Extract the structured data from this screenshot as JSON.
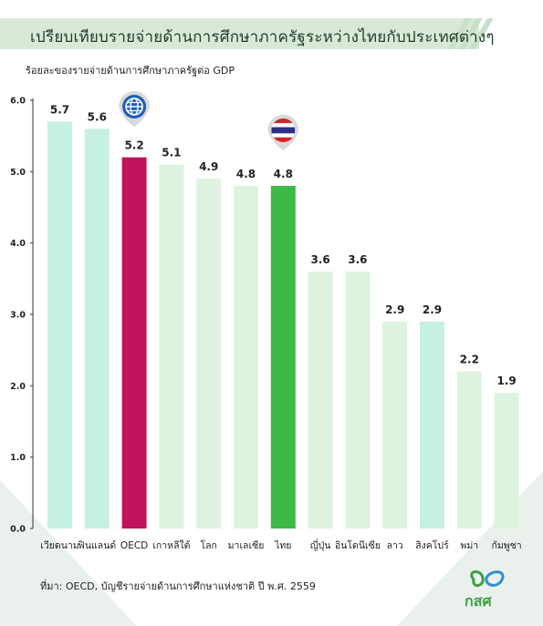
{
  "title": "เปรียบเทียบรายจ่ายด้านการศึกษาภาครัฐระหว่างไทยกับประเทศต่างๆ",
  "subtitle": "ร้อยละของรายจ่ายด้านการศึกษาภาครัฐต่อ GDP",
  "source": "ที่มา: OECD, บัญชีรายจ่ายด้านการศึกษาแห่งชาติ ปี พ.ศ. 2559",
  "logo_text": "กสศ",
  "colors": {
    "highlight_oecd": "#c0135a",
    "highlight_thai": "#3fb84a",
    "bar_mint": "#c6f0e2",
    "bar_light": "#def3df",
    "title_bg": "#d8ead7",
    "background_shape": "#eaf1ec"
  },
  "icons": {
    "oecd": "globe-icon",
    "thai": "thailand-flag-icon"
  },
  "chart_data": {
    "type": "bar",
    "ylim": [
      0,
      6
    ],
    "yticks": [
      "0.0",
      "1.0",
      "2.0",
      "3.0",
      "4.0",
      "5.0",
      "6.0"
    ],
    "grid": false,
    "categories": [
      "เวียดนาม",
      "ฟินแลนด์",
      "OECD",
      "เกาหลีใต้",
      "โลก",
      "มาเลเซีย",
      "ไทย",
      "ญี่ปุ่น",
      "อินโดนีเซีย",
      "ลาว",
      "สิงคโปร์",
      "พม่า",
      "กัมพูชา"
    ],
    "values": [
      5.7,
      5.6,
      5.2,
      5.1,
      4.9,
      4.8,
      4.8,
      3.6,
      3.6,
      2.9,
      2.9,
      2.2,
      1.9
    ],
    "value_labels": [
      "5.7",
      "5.6",
      "5.2",
      "5.1",
      "4.9",
      "4.8",
      "4.8",
      "3.6",
      "3.6",
      "2.9",
      "2.9",
      "2.2",
      "1.9"
    ],
    "bar_colors": [
      "#c6f0e2",
      "#c6f0e2",
      "#c0135a",
      "#def3df",
      "#def3df",
      "#def3df",
      "#3fb84a",
      "#def3df",
      "#def3df",
      "#def3df",
      "#c6f0e2",
      "#def3df",
      "#def3df"
    ]
  }
}
